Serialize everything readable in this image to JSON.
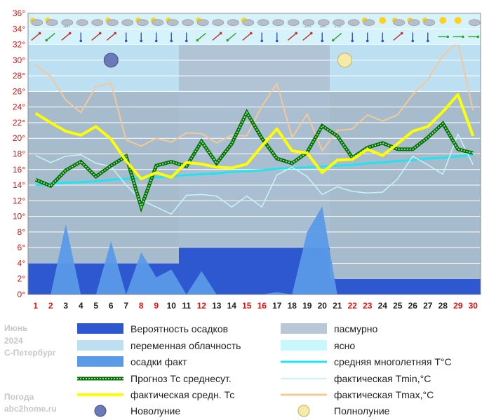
{
  "chart_data": {
    "type": "line",
    "y_tick_labels": [
      "0°",
      "2°",
      "4°",
      "6°",
      "8°",
      "10°",
      "12°",
      "14°",
      "16°",
      "18°",
      "20°",
      "22°",
      "24°",
      "26°",
      "28°",
      "30°",
      "32°",
      "34°",
      "36°"
    ],
    "ylim": [
      0,
      36
    ],
    "x": [
      1,
      2,
      3,
      4,
      5,
      6,
      7,
      8,
      9,
      10,
      11,
      12,
      13,
      14,
      15,
      16,
      17,
      18,
      19,
      20,
      21,
      22,
      23,
      24,
      25,
      26,
      27,
      28,
      29,
      30
    ],
    "weekend_days": [
      1,
      2,
      8,
      9,
      12,
      15,
      16,
      22,
      23,
      29,
      30
    ],
    "sky_bands": [
      {
        "from_day": 0.5,
        "to_day": 10.5,
        "top": 28,
        "bottom": 26,
        "kind": "переменная облачность"
      },
      {
        "from_day": 10.5,
        "to_day": 20.5,
        "top": 28,
        "bottom": 26,
        "kind": "пасмурно"
      },
      {
        "from_day": 20.5,
        "to_day": 30.5,
        "top": 28,
        "bottom": 26,
        "kind": "переменная облачность"
      }
    ],
    "precip_probability": [
      {
        "from_day": 0.5,
        "to_day": 10.5,
        "value": 4
      },
      {
        "from_day": 10.5,
        "to_day": 20.5,
        "value": 6
      },
      {
        "from_day": 20.5,
        "to_day": 30.5,
        "value": 2
      }
    ],
    "moon_phases": [
      {
        "day": 6,
        "phase": "Новолуние"
      },
      {
        "day": 21.5,
        "phase": "Полнолуние"
      }
    ],
    "series": [
      {
        "name": "осадки факт",
        "color": "#5a9ae8",
        "values": [
          0,
          0,
          9,
          0,
          0,
          6.8,
          0,
          5.4,
          2.2,
          3.2,
          0,
          3,
          0,
          0,
          0,
          0,
          0.3,
          0,
          8,
          11.3,
          0,
          0,
          0,
          0,
          0,
          0,
          0,
          0,
          0,
          0
        ]
      },
      {
        "name": "средняя многолетняя T°C",
        "color": "#22e4f0",
        "values": [
          14.0,
          14.2,
          14.3,
          14.4,
          14.5,
          14.7,
          14.8,
          14.9,
          15.0,
          15.1,
          15.3,
          15.4,
          15.5,
          15.7,
          15.8,
          15.9,
          16.1,
          16.2,
          16.3,
          16.4,
          16.5,
          16.6,
          16.8,
          16.9,
          17.1,
          17.2,
          17.4,
          17.5,
          17.7,
          17.9
        ]
      },
      {
        "name": "фактическая Tmin,°C",
        "color": "#c8f4f8",
        "values": [
          17.8,
          16.9,
          17.7,
          17.9,
          16.8,
          16.4,
          14.0,
          12.1,
          11.2,
          10.3,
          12.7,
          12.8,
          12.6,
          11.2,
          12.6,
          11.2,
          15.3,
          16.3,
          15.1,
          12.8,
          13.8,
          13.2,
          13.0,
          13.1,
          14.8,
          17.7,
          16.6,
          15.4,
          20.5,
          16.6
        ]
      },
      {
        "name": "фактическая Tmax,°C",
        "color": "#f4c898",
        "values": [
          29.4,
          27.9,
          24.9,
          23.3,
          26.6,
          27.1,
          19.8,
          19.0,
          20.0,
          19.5,
          20.7,
          20.6,
          19.4,
          20.4,
          20.3,
          24.1,
          27.0,
          20.1,
          23.1,
          18.4,
          21.0,
          21.2,
          23.0,
          22.2,
          23.0,
          25.6,
          27.5,
          30.6,
          32.3,
          23.6
        ]
      },
      {
        "name": "Прогноз Тс среднесут.",
        "color": "#18a818",
        "values": [
          14.7,
          13.9,
          15.9,
          17.0,
          15.1,
          16.5,
          17.7,
          11.2,
          16.5,
          17.0,
          16.4,
          19.6,
          16.8,
          19.3,
          23.3,
          20.0,
          17.4,
          16.8,
          18.2,
          21.6,
          20.3,
          17.5,
          18.8,
          19.4,
          18.6,
          18.6,
          20.1,
          21.9,
          18.6,
          18.1
        ]
      },
      {
        "name": "фактическая средн. Тс",
        "color": "#ffff00",
        "values": [
          23.2,
          22.0,
          20.9,
          20.4,
          21.5,
          19.9,
          17.1,
          14.8,
          15.6,
          15.0,
          16.9,
          16.7,
          16.3,
          16.2,
          16.7,
          19.0,
          21.2,
          18.4,
          18.1,
          15.6,
          17.2,
          17.3,
          18.6,
          17.8,
          19.3,
          20.9,
          21.5,
          23.4,
          25.6,
          20.3
        ]
      }
    ],
    "weather_icons": [
      "sun-cloud",
      "sun-cloud",
      "cloud-rain",
      "cloud",
      "cloud",
      "sun-cloud",
      "cloud",
      "sun-cloud",
      "sun-cloud",
      "sun-cloud",
      "cloud",
      "sun-cloud",
      "cloud",
      "cloud",
      "sun-cloud",
      "cloud",
      "cloud",
      "cloud",
      "cloud-rain",
      "cloud-rain",
      "cloud-rain",
      "cloud",
      "sun-cloud",
      "sun",
      "sun-cloud",
      "sun-cloud",
      "sun-cloud",
      "sun",
      "sun",
      "cloud"
    ],
    "wind_icons": [
      "arrow-ne",
      "arrow-sw",
      "arrow-ne",
      "arrow-down",
      "arrow-ne",
      "arrow-ne",
      "arrow-down",
      "arrow-down",
      "arrow-down",
      "arrow-down",
      "arrow-down",
      "arrow-sw",
      "arrow-ne",
      "arrow-sw",
      "arrow-ne",
      "arrow-down",
      "arrow-down",
      "arrow-ne",
      "arrow-ne",
      "arrow-down",
      "arrow-sw",
      "arrow-down",
      "arrow-down",
      "arrow-down",
      "arrow-ne",
      "arrow-down",
      "arrow-down",
      "arrow-right",
      "arrow-right",
      "arrow-right"
    ]
  },
  "side_text": {
    "month": "Июнь",
    "year": "2024",
    "city": "С-Петербург",
    "site_line1": "Погода",
    "site_line2": "abc2home.ru"
  },
  "legend": [
    {
      "label": "Вероятность осадков",
      "swatch": "precip-prob-swatch"
    },
    {
      "label": "пасмурно",
      "swatch": "overcast-swatch"
    },
    {
      "label": "переменная облачность",
      "swatch": "partly-cloudy-swatch"
    },
    {
      "label": "ясно",
      "swatch": "clear-swatch"
    },
    {
      "label": "осадки факт",
      "swatch": "precip-fact-swatch"
    },
    {
      "label": "средняя многолетняя T°C",
      "swatch": "normal-temp-line"
    },
    {
      "label": "Прогноз Тс среднесут.",
      "swatch": "forecast-line"
    },
    {
      "label": "фактическая Tmin,°C",
      "swatch": "tmin-line"
    },
    {
      "label": "фактическая средн. Тс",
      "swatch": "tavg-line"
    },
    {
      "label": "фактическая Tmax,°C",
      "swatch": "tmax-line"
    },
    {
      "label": "Новолуние",
      "swatch": "new-moon-icon"
    },
    {
      "label": "Полнолуние",
      "swatch": "full-moon-icon"
    }
  ],
  "colors": {
    "plot_bg": "#a6bccc",
    "band_light": "#bcdff2",
    "band_gray": "#b8c8d8",
    "precip_prob": "#2e58d0",
    "precip_fact": "#5a9ae8",
    "weekend_day": "#e01010",
    "weekday": "#202020",
    "grid": "#ffffff"
  }
}
